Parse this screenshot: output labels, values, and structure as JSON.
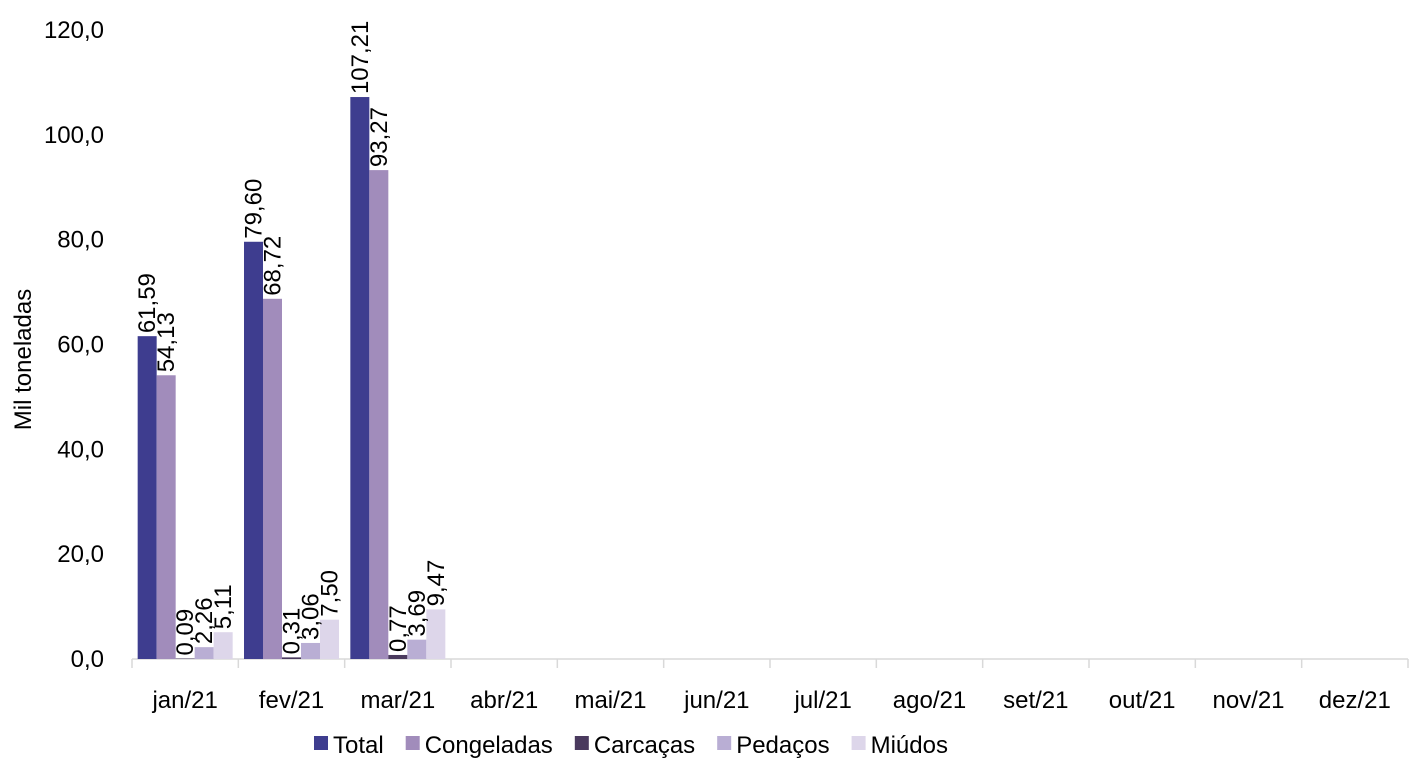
{
  "chart_data": {
    "type": "bar",
    "title": "",
    "xlabel": "",
    "ylabel": "Mil toneladas",
    "ylim": [
      0,
      120
    ],
    "yticks": [
      "0,0",
      "20,0",
      "40,0",
      "60,0",
      "80,0",
      "100,0",
      "120,0"
    ],
    "categories": [
      "jan/21",
      "fev/21",
      "mar/21",
      "abr/21",
      "mai/21",
      "jun/21",
      "jul/21",
      "ago/21",
      "set/21",
      "out/21",
      "nov/21",
      "dez/21"
    ],
    "series": [
      {
        "name": "Total",
        "color": "#3e3d8f",
        "values": [
          61.59,
          79.6,
          107.21,
          null,
          null,
          null,
          null,
          null,
          null,
          null,
          null,
          null
        ],
        "labels": [
          "61,59",
          "79,60",
          "107,21"
        ]
      },
      {
        "name": "Congeladas",
        "color": "#a18cbb",
        "values": [
          54.13,
          68.72,
          93.27,
          null,
          null,
          null,
          null,
          null,
          null,
          null,
          null,
          null
        ],
        "labels": [
          "54,13",
          "68,72",
          "93,27"
        ]
      },
      {
        "name": "Carcaças",
        "color": "#4a3a5e",
        "values": [
          0.09,
          0.31,
          0.77,
          null,
          null,
          null,
          null,
          null,
          null,
          null,
          null,
          null
        ],
        "labels": [
          "0,09",
          "0,31",
          "0,77"
        ]
      },
      {
        "name": "Pedaços",
        "color": "#b9aed4",
        "values": [
          2.26,
          3.06,
          3.69,
          null,
          null,
          null,
          null,
          null,
          null,
          null,
          null,
          null
        ],
        "labels": [
          "2,26",
          "3,06",
          "3,69"
        ]
      },
      {
        "name": "Miúdos",
        "color": "#ddd6ea",
        "values": [
          5.11,
          7.5,
          9.47,
          null,
          null,
          null,
          null,
          null,
          null,
          null,
          null,
          null
        ],
        "labels": [
          "5,11",
          "7,50",
          "9,47"
        ]
      }
    ],
    "grid": false,
    "legend": "bottom"
  }
}
